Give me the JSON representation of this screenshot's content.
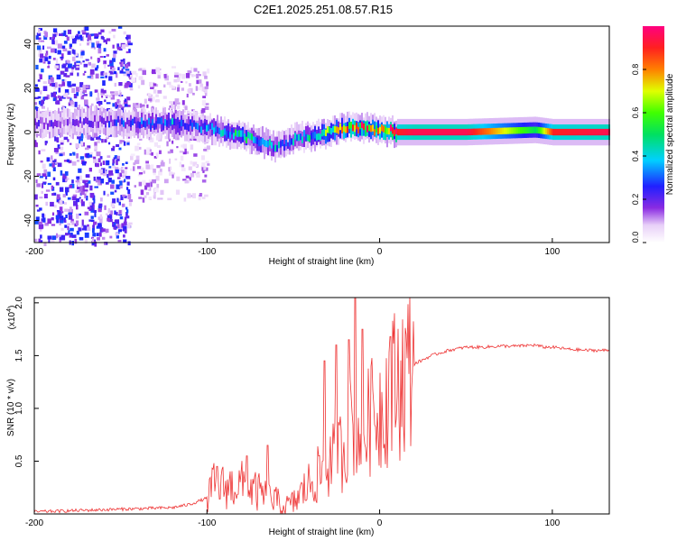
{
  "title": "C2E1.2025.251.08.57.R15",
  "chart_data": [
    {
      "type": "heatmap",
      "xlabel": "Height of straight line (km)",
      "ylabel": "Frequency (Hz)",
      "xlim": [
        -200,
        133
      ],
      "ylim": [
        -50,
        48
      ],
      "x_ticks": [
        -200,
        -100,
        0,
        100
      ],
      "y_ticks": [
        -40,
        -20,
        0,
        20,
        40
      ],
      "colorbar": {
        "label": "Normalized spectral amplitude",
        "range": [
          0,
          1
        ],
        "ticks": [
          0.0,
          0.2,
          0.4,
          0.6,
          0.8
        ],
        "tick_labels": [
          "0.0",
          "0.2",
          "0.4",
          "0.6",
          "0.8"
        ],
        "colormap": "white-purple-blue-cyan-green-yellow-red-magenta"
      },
      "ridge": {
        "x": [
          -200,
          -180,
          -160,
          -140,
          -120,
          -110,
          -100,
          -90,
          -80,
          -70,
          -60,
          -55,
          -50,
          -45,
          -40,
          -30,
          -20,
          -10,
          0,
          10,
          20,
          50,
          90,
          100,
          133
        ],
        "frequency": [
          4,
          4,
          5,
          4,
          4,
          3,
          2,
          0,
          -2,
          -4,
          -7,
          -6,
          -3,
          -2,
          -2,
          0,
          2,
          2,
          1,
          0,
          0,
          0,
          1,
          0,
          0
        ],
        "amplitude": [
          0.2,
          0.15,
          0.2,
          0.3,
          0.35,
          0.3,
          0.35,
          0.4,
          0.45,
          0.4,
          0.35,
          0.3,
          0.35,
          0.4,
          0.4,
          0.6,
          0.75,
          0.85,
          0.75,
          0.9,
          0.95,
          0.95,
          0.5,
          0.9,
          0.95
        ]
      },
      "scatter_regions": [
        {
          "x_range": [
            -200,
            -145
          ],
          "freq_range": [
            -50,
            48
          ],
          "level": 0.15
        },
        {
          "x_range": [
            -145,
            -100
          ],
          "freq_range": [
            -30,
            30
          ],
          "level": 0.08
        }
      ]
    },
    {
      "type": "line",
      "xlabel": "Height of straight line (km)",
      "ylabel": "SNR (10 * v/v)",
      "y_multiplier": "(x10",
      "y_multiplier_exp": "4",
      "y_multiplier_close": ")",
      "xlim": [
        -200,
        133
      ],
      "ylim": [
        0,
        2.05
      ],
      "x_ticks": [
        -200,
        -100,
        0,
        100
      ],
      "y_ticks": [
        0.5,
        1.0,
        1.5,
        2.0
      ],
      "y_tick_labels": [
        "0.5",
        "1.0",
        "1.5",
        "2.0"
      ],
      "color": "#ee3333",
      "series": [
        {
          "x": [
            -200,
            -180,
            -160,
            -140,
            -120,
            -110,
            -100,
            -95,
            -90,
            -80,
            -70,
            -60,
            -55,
            -50,
            -40,
            -30,
            -25,
            -20,
            -15,
            -12,
            -10,
            -5,
            0,
            5,
            10,
            15,
            20,
            30,
            40,
            50,
            60,
            70,
            80,
            90,
            95,
            100,
            110,
            120,
            133
          ],
          "values": [
            0.02,
            0.03,
            0.04,
            0.05,
            0.06,
            0.09,
            0.15,
            0.3,
            0.25,
            0.28,
            0.2,
            0.12,
            0.06,
            0.1,
            0.3,
            0.45,
            0.55,
            0.65,
            0.9,
            0.8,
            0.75,
            0.9,
            1.0,
            1.15,
            1.25,
            1.35,
            1.42,
            1.5,
            1.55,
            1.58,
            1.58,
            1.59,
            1.59,
            1.6,
            1.58,
            1.58,
            1.56,
            1.55,
            1.55
          ]
        }
      ],
      "spikes": [
        {
          "x": -94,
          "y": 0.45
        },
        {
          "x": -77,
          "y": 0.55
        },
        {
          "x": -65,
          "y": 0.65
        },
        {
          "x": -32,
          "y": 1.45
        },
        {
          "x": -25,
          "y": 1.6
        },
        {
          "x": -18,
          "y": 1.65
        },
        {
          "x": -14,
          "y": 2.05
        },
        {
          "x": -10,
          "y": 1.75
        },
        {
          "x": -5,
          "y": 1.4
        },
        {
          "x": 6,
          "y": 1.68
        }
      ]
    }
  ]
}
